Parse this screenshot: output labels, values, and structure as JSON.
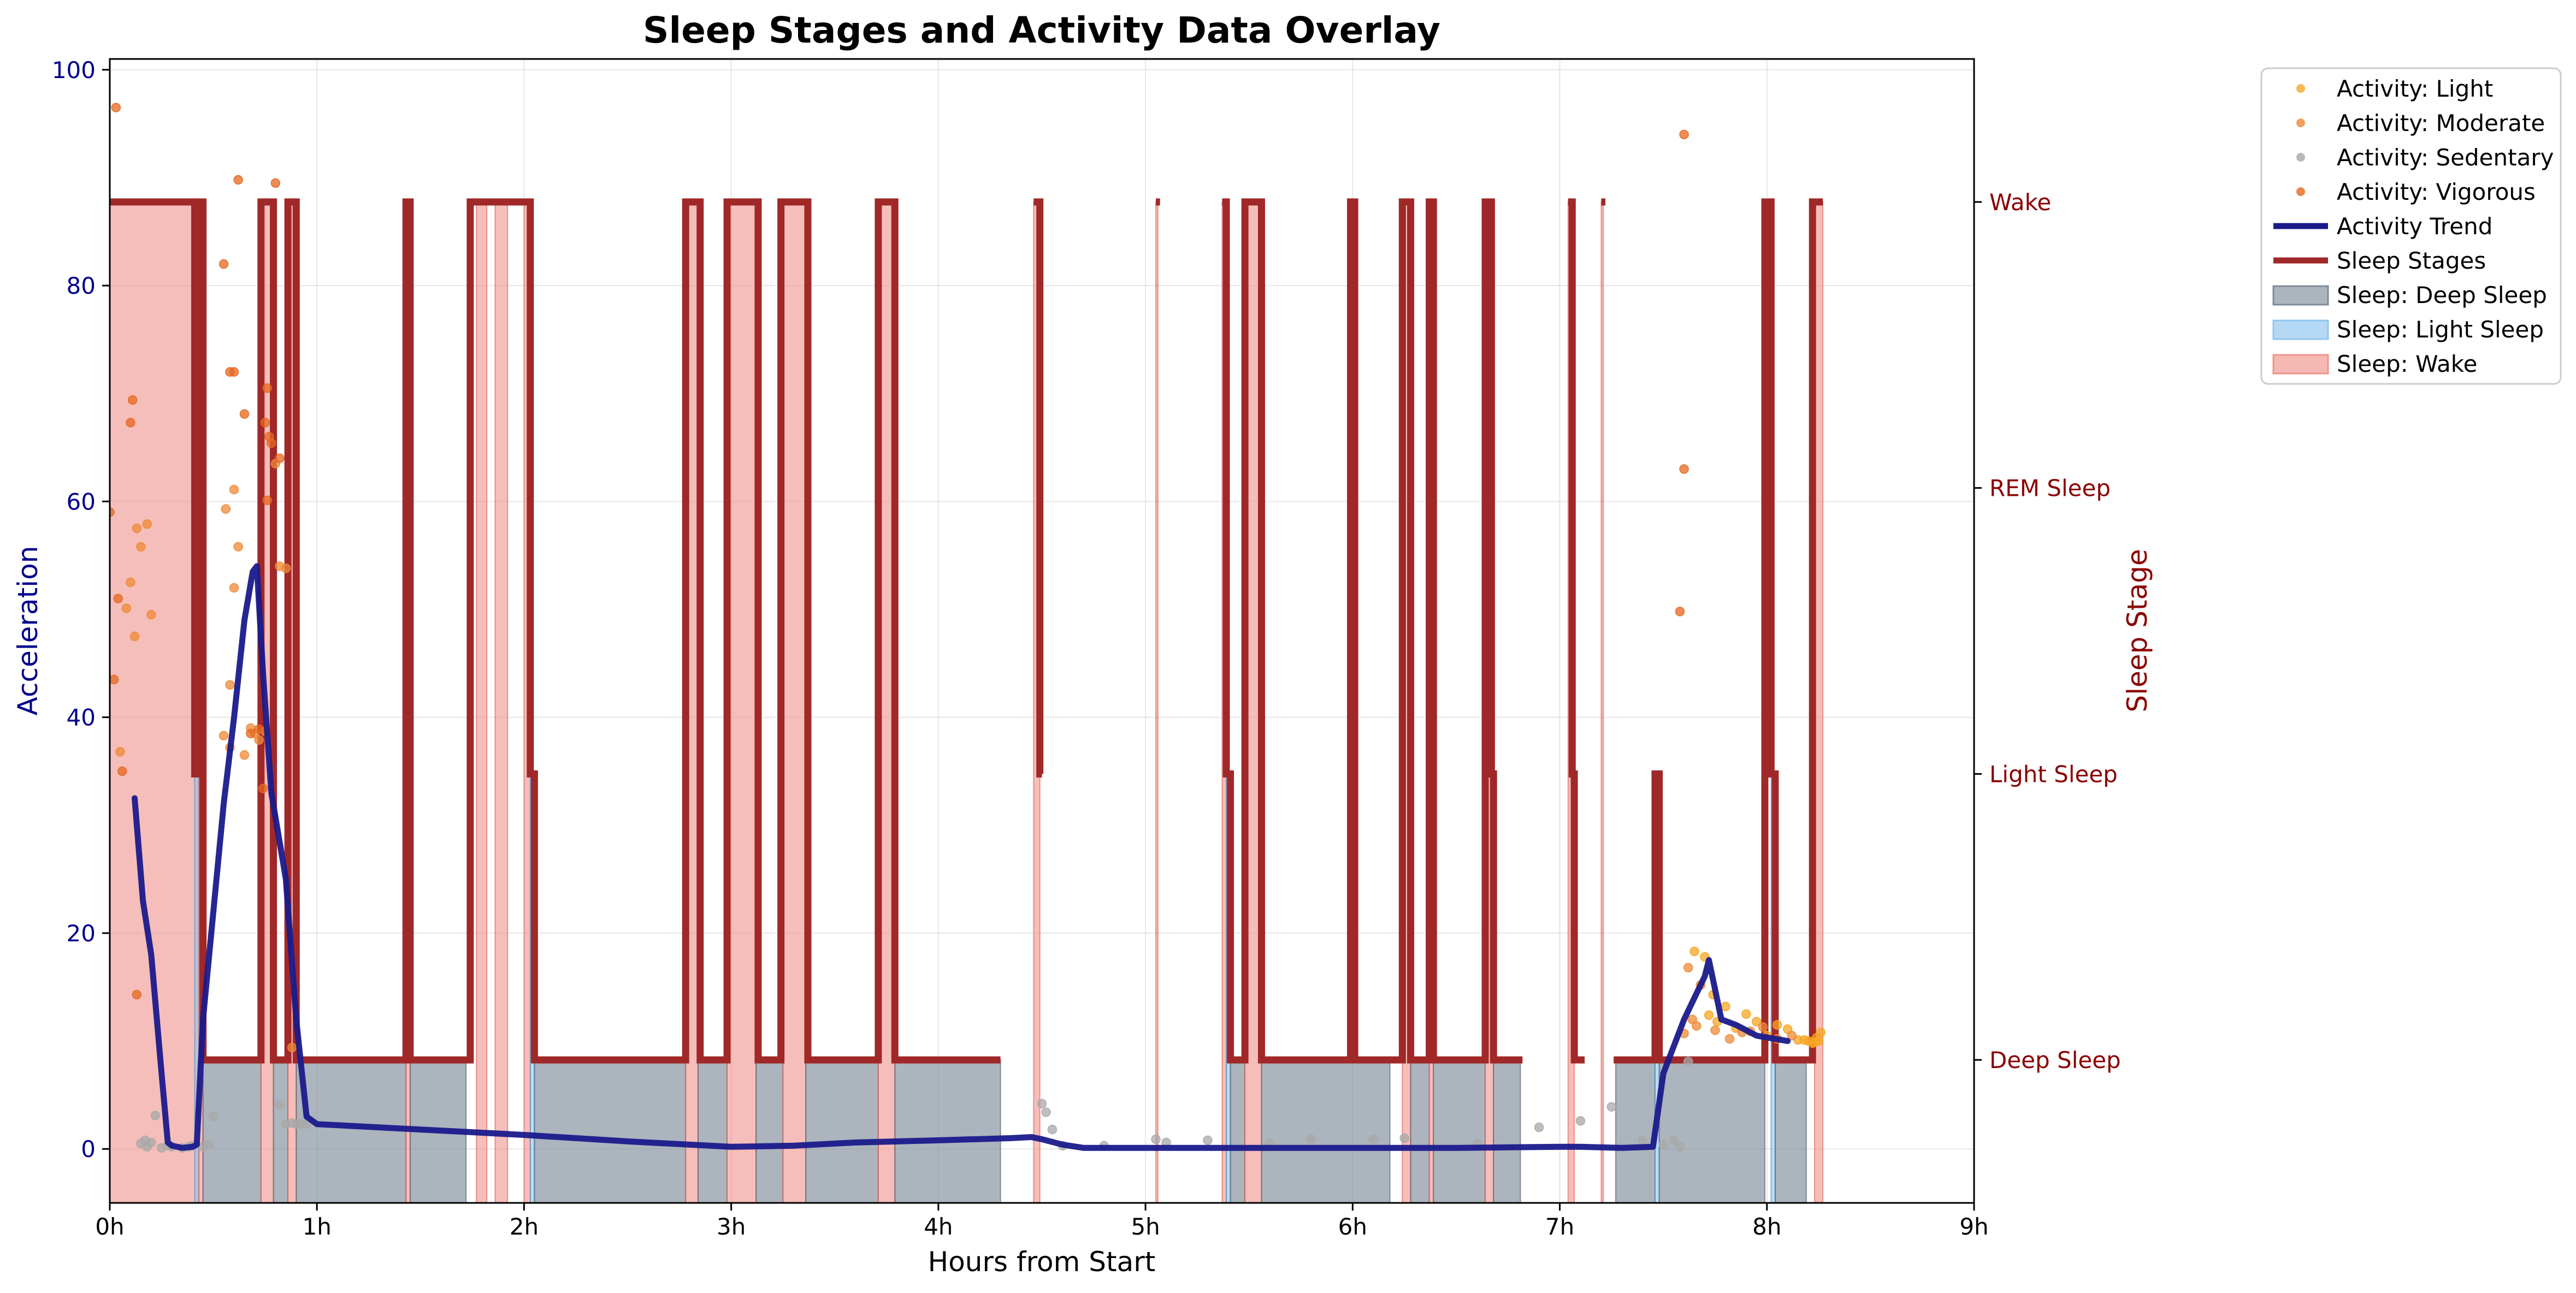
{
  "chart_data": {
    "type": "line",
    "title": "Sleep Stages and Activity Data Overlay",
    "xlabel": "Hours from Start",
    "ylabel_left": "Acceleration",
    "ylabel_right": "Sleep Stage",
    "xlim": [
      0,
      9
    ],
    "ylim_left": [
      -5,
      101
    ],
    "ylim_right": [
      0.5,
      4.5
    ],
    "x_ticks": [
      0,
      1,
      2,
      3,
      4,
      5,
      6,
      7,
      8,
      9
    ],
    "x_tick_labels": [
      "0h",
      "1h",
      "2h",
      "3h",
      "4h",
      "5h",
      "6h",
      "7h",
      "8h",
      "9h"
    ],
    "y_ticks_left": [
      0,
      20,
      40,
      60,
      80,
      100
    ],
    "y_tick_labels_left": [
      "0",
      "20",
      "40",
      "60",
      "80",
      "100"
    ],
    "stage_ticks": [
      1,
      2,
      3,
      4
    ],
    "stage_tick_labels": [
      "Deep Sleep",
      "Light Sleep",
      "REM Sleep",
      "Wake"
    ],
    "grid": true,
    "legend_position": "outside-top-right",
    "colors": {
      "light": "#f5a623",
      "moderate": "#ee8a35",
      "sedentary": "#a8a8a8",
      "vigorous": "#e5671f",
      "trend": "#1a1a8c",
      "stages": "#a02828",
      "deep_fill": "#7f8c9a",
      "light_fill": "#8ec5ee",
      "wake_fill": "#f0938c",
      "left_axis": "#00008b",
      "right_axis": "#8b0000"
    },
    "legend": [
      {
        "label": "Activity: Light",
        "kind": "dot",
        "color": "#f5a623"
      },
      {
        "label": "Activity: Moderate",
        "kind": "dot",
        "color": "#ee8a35"
      },
      {
        "label": "Activity: Sedentary",
        "kind": "dot",
        "color": "#a8a8a8"
      },
      {
        "label": "Activity: Vigorous",
        "kind": "dot",
        "color": "#e5671f"
      },
      {
        "label": "Activity Trend",
        "kind": "line",
        "color": "#1a1a8c"
      },
      {
        "label": "Sleep Stages",
        "kind": "line",
        "color": "#a02828"
      },
      {
        "label": "Sleep: Deep Sleep",
        "kind": "patch",
        "color": "#7f8c9a"
      },
      {
        "label": "Sleep: Light Sleep",
        "kind": "patch",
        "color": "#8ec5ee"
      },
      {
        "label": "Sleep: Wake",
        "kind": "patch",
        "color": "#f0938c"
      }
    ],
    "sleep_stage_segments": [
      [
        0.0,
        0.41,
        4
      ],
      [
        0.41,
        0.43,
        2
      ],
      [
        0.43,
        0.45,
        4
      ],
      [
        0.45,
        0.73,
        1
      ],
      [
        0.73,
        0.79,
        4
      ],
      [
        0.79,
        0.86,
        1
      ],
      [
        0.86,
        0.9,
        4
      ],
      [
        0.9,
        1.43,
        1
      ],
      [
        1.43,
        1.45,
        4
      ],
      [
        1.45,
        1.74,
        1
      ],
      [
        1.74,
        1.76,
        4
      ],
      [
        1.76,
        1.85,
        4
      ],
      [
        1.85,
        1.93,
        4
      ],
      [
        1.93,
        2.0,
        4
      ],
      [
        2.0,
        2.03,
        4
      ],
      [
        2.03,
        2.05,
        2
      ],
      [
        2.05,
        2.78,
        1
      ],
      [
        2.78,
        2.85,
        4
      ],
      [
        2.85,
        2.98,
        1
      ],
      [
        2.98,
        3.13,
        4
      ],
      [
        3.13,
        3.24,
        1
      ],
      [
        3.24,
        3.37,
        4
      ],
      [
        3.37,
        3.71,
        1
      ],
      [
        3.71,
        3.79,
        4
      ],
      [
        3.79,
        4.3,
        1
      ],
      [
        4.46,
        4.49,
        4
      ],
      [
        4.49,
        4.5,
        2
      ],
      [
        5.05,
        5.07,
        4
      ],
      [
        5.37,
        5.39,
        4
      ],
      [
        5.39,
        5.41,
        2
      ],
      [
        5.41,
        5.48,
        1
      ],
      [
        5.48,
        5.56,
        4
      ],
      [
        5.56,
        5.99,
        1
      ],
      [
        5.99,
        6.01,
        4
      ],
      [
        6.01,
        6.24,
        1
      ],
      [
        6.24,
        6.28,
        4
      ],
      [
        6.28,
        6.37,
        1
      ],
      [
        6.37,
        6.39,
        4
      ],
      [
        6.39,
        6.64,
        1
      ],
      [
        6.64,
        6.67,
        4
      ],
      [
        6.67,
        6.68,
        2
      ],
      [
        6.68,
        6.82,
        1
      ],
      [
        7.04,
        7.06,
        4
      ],
      [
        7.06,
        7.07,
        2
      ],
      [
        7.07,
        7.12,
        1
      ],
      [
        7.2,
        7.22,
        4
      ],
      [
        7.26,
        7.46,
        1
      ],
      [
        7.46,
        7.48,
        2
      ],
      [
        7.48,
        7.99,
        1
      ],
      [
        7.99,
        8.02,
        4
      ],
      [
        8.02,
        8.04,
        2
      ],
      [
        8.04,
        8.22,
        1
      ],
      [
        8.22,
        8.27,
        4
      ]
    ],
    "sleep_fill_spans": [
      {
        "stage": "Wake",
        "x0": 0.0,
        "x1": 0.43
      },
      {
        "stage": "Light Sleep",
        "x0": 0.41,
        "x1": 0.43
      },
      {
        "stage": "Wake",
        "x0": 0.43,
        "x1": 0.45
      },
      {
        "stage": "Deep Sleep",
        "x0": 0.45,
        "x1": 0.73
      },
      {
        "stage": "Wake",
        "x0": 0.73,
        "x1": 0.79
      },
      {
        "stage": "Deep Sleep",
        "x0": 0.79,
        "x1": 0.86
      },
      {
        "stage": "Wake",
        "x0": 0.86,
        "x1": 0.9
      },
      {
        "stage": "Deep Sleep",
        "x0": 0.9,
        "x1": 1.43
      },
      {
        "stage": "Wake",
        "x0": 1.43,
        "x1": 1.45
      },
      {
        "stage": "Deep Sleep",
        "x0": 1.45,
        "x1": 1.72
      },
      {
        "stage": "Wake",
        "x0": 1.77,
        "x1": 1.82
      },
      {
        "stage": "Wake",
        "x0": 1.86,
        "x1": 1.92
      },
      {
        "stage": "Wake",
        "x0": 2.0,
        "x1": 2.03
      },
      {
        "stage": "Light Sleep",
        "x0": 2.03,
        "x1": 2.05
      },
      {
        "stage": "Deep Sleep",
        "x0": 2.05,
        "x1": 2.78
      },
      {
        "stage": "Wake",
        "x0": 2.78,
        "x1": 2.84
      },
      {
        "stage": "Deep Sleep",
        "x0": 2.84,
        "x1": 2.98
      },
      {
        "stage": "Wake",
        "x0": 2.98,
        "x1": 3.12
      },
      {
        "stage": "Deep Sleep",
        "x0": 3.12,
        "x1": 3.25
      },
      {
        "stage": "Wake",
        "x0": 3.25,
        "x1": 3.36
      },
      {
        "stage": "Deep Sleep",
        "x0": 3.36,
        "x1": 3.71
      },
      {
        "stage": "Wake",
        "x0": 3.71,
        "x1": 3.79
      },
      {
        "stage": "Deep Sleep",
        "x0": 3.79,
        "x1": 4.3
      },
      {
        "stage": "Wake",
        "x0": 4.46,
        "x1": 4.49
      },
      {
        "stage": "Wake",
        "x0": 5.05,
        "x1": 5.06
      },
      {
        "stage": "Wake",
        "x0": 5.37,
        "x1": 5.39
      },
      {
        "stage": "Light Sleep",
        "x0": 5.39,
        "x1": 5.41
      },
      {
        "stage": "Deep Sleep",
        "x0": 5.41,
        "x1": 5.48
      },
      {
        "stage": "Wake",
        "x0": 5.48,
        "x1": 5.56
      },
      {
        "stage": "Deep Sleep",
        "x0": 5.56,
        "x1": 6.18
      },
      {
        "stage": "Wake",
        "x0": 6.24,
        "x1": 6.28
      },
      {
        "stage": "Deep Sleep",
        "x0": 6.28,
        "x1": 6.37
      },
      {
        "stage": "Wake",
        "x0": 6.37,
        "x1": 6.39
      },
      {
        "stage": "Deep Sleep",
        "x0": 6.39,
        "x1": 6.64
      },
      {
        "stage": "Wake",
        "x0": 6.64,
        "x1": 6.68
      },
      {
        "stage": "Deep Sleep",
        "x0": 6.68,
        "x1": 6.81
      },
      {
        "stage": "Wake",
        "x0": 7.04,
        "x1": 7.07
      },
      {
        "stage": "Wake",
        "x0": 7.2,
        "x1": 7.21
      },
      {
        "stage": "Deep Sleep",
        "x0": 7.27,
        "x1": 7.46
      },
      {
        "stage": "Light Sleep",
        "x0": 7.46,
        "x1": 7.48
      },
      {
        "stage": "Deep Sleep",
        "x0": 7.48,
        "x1": 7.99
      },
      {
        "stage": "Light Sleep",
        "x0": 8.02,
        "x1": 8.04
      },
      {
        "stage": "Deep Sleep",
        "x0": 8.04,
        "x1": 8.19
      },
      {
        "stage": "Wake",
        "x0": 8.23,
        "x1": 8.27
      }
    ],
    "activity_trend": {
      "x": [
        0.12,
        0.16,
        0.2,
        0.25,
        0.28,
        0.3,
        0.35,
        0.4,
        0.42,
        0.45,
        0.5,
        0.55,
        0.6,
        0.65,
        0.69,
        0.71,
        0.74,
        0.78,
        0.85,
        0.9,
        0.95,
        1.0,
        1.5,
        2.0,
        2.5,
        3.0,
        3.3,
        3.6,
        4.0,
        4.35,
        4.45,
        4.5,
        4.6,
        4.7,
        5.0,
        5.5,
        6.0,
        6.5,
        7.0,
        7.1,
        7.3,
        7.45,
        7.5,
        7.6,
        7.7,
        7.72,
        7.78,
        7.85,
        7.95,
        8.1
      ],
      "y": [
        32.5,
        23,
        18,
        7,
        0.6,
        0.3,
        0.1,
        0.2,
        0.4,
        12,
        22,
        32,
        40,
        49,
        53.5,
        54,
        44,
        33,
        25,
        12,
        3,
        2.3,
        1.8,
        1.3,
        0.7,
        0.2,
        0.3,
        0.6,
        0.8,
        1.0,
        1.1,
        0.9,
        0.4,
        0.1,
        0.1,
        0.1,
        0.1,
        0.1,
        0.2,
        0.2,
        0.1,
        0.2,
        7,
        12,
        16,
        17.5,
        12,
        11.5,
        10.5,
        10
      ]
    },
    "scatter": {
      "light": [
        [
          7.65,
          18.3
        ],
        [
          7.7,
          17.8
        ],
        [
          7.72,
          12.4
        ],
        [
          7.74,
          14.3
        ],
        [
          7.76,
          11.8
        ],
        [
          7.8,
          13.2
        ],
        [
          7.85,
          11.2
        ],
        [
          7.9,
          12.5
        ],
        [
          7.95,
          11.8
        ],
        [
          8.0,
          10.5
        ],
        [
          8.05,
          11.5
        ],
        [
          8.1,
          11.1
        ],
        [
          8.15,
          10.1
        ],
        [
          8.2,
          10.0
        ],
        [
          8.22,
          9.8
        ],
        [
          8.24,
          10.3
        ],
        [
          8.25,
          10.0
        ],
        [
          8.26,
          10.8
        ],
        [
          8.23,
          9.9
        ],
        [
          8.18,
          10.1
        ]
      ],
      "moderate": [
        [
          0.1,
          52.5
        ],
        [
          0.12,
          47.5
        ],
        [
          0.15,
          55.8
        ],
        [
          0.08,
          50.1
        ],
        [
          0.05,
          36.8
        ],
        [
          0.13,
          57.5
        ],
        [
          0.18,
          57.9
        ],
        [
          0.2,
          49.5
        ],
        [
          0.55,
          38.3
        ],
        [
          0.58,
          37.2
        ],
        [
          0.6,
          52.0
        ],
        [
          0.62,
          55.8
        ],
        [
          0.65,
          36.5
        ],
        [
          0.68,
          39.0
        ],
        [
          0.7,
          38.5
        ],
        [
          0.72,
          37.9
        ],
        [
          0.75,
          38.7
        ],
        [
          0.8,
          63.5
        ],
        [
          0.85,
          53.8
        ],
        [
          0.88,
          9.4
        ],
        [
          0.6,
          61.1
        ],
        [
          0.56,
          59.3
        ],
        [
          0.58,
          43.0
        ],
        [
          0.82,
          54.0
        ],
        [
          7.6,
          10.7
        ],
        [
          7.62,
          16.8
        ],
        [
          7.64,
          12.0
        ],
        [
          7.66,
          11.4
        ],
        [
          7.68,
          15.2
        ],
        [
          7.75,
          11.0
        ],
        [
          7.82,
          10.2
        ],
        [
          7.88,
          10.8
        ],
        [
          7.92,
          10.9
        ],
        [
          7.98,
          11.3
        ],
        [
          8.05,
          10.2
        ],
        [
          8.12,
          10.5
        ]
      ],
      "sedentary": [
        [
          0.15,
          0.5
        ],
        [
          0.17,
          0.8
        ],
        [
          0.18,
          0.2
        ],
        [
          0.2,
          0.6
        ],
        [
          0.22,
          3.1
        ],
        [
          0.25,
          0.1
        ],
        [
          0.28,
          0.3
        ],
        [
          0.3,
          0.2
        ],
        [
          0.35,
          0.1
        ],
        [
          0.38,
          0.2
        ],
        [
          0.4,
          0.3
        ],
        [
          0.45,
          0.2
        ],
        [
          0.48,
          0.4
        ],
        [
          0.5,
          3.0
        ],
        [
          0.82,
          4.1
        ],
        [
          0.85,
          2.3
        ],
        [
          0.88,
          2.4
        ],
        [
          0.9,
          2.3
        ],
        [
          0.92,
          2.3
        ],
        [
          0.95,
          2.3
        ],
        [
          4.5,
          4.2
        ],
        [
          4.52,
          3.4
        ],
        [
          4.55,
          1.8
        ],
        [
          4.6,
          0.3
        ],
        [
          4.8,
          0.3
        ],
        [
          5.05,
          0.9
        ],
        [
          5.1,
          0.6
        ],
        [
          5.3,
          0.8
        ],
        [
          5.6,
          0.5
        ],
        [
          5.8,
          0.9
        ],
        [
          6.1,
          0.9
        ],
        [
          6.25,
          1.0
        ],
        [
          6.6,
          0.5
        ],
        [
          6.9,
          2.0
        ],
        [
          7.1,
          2.6
        ],
        [
          7.25,
          3.9
        ],
        [
          7.4,
          0.8
        ],
        [
          7.5,
          0.4
        ],
        [
          7.55,
          0.8
        ],
        [
          7.58,
          0.2
        ],
        [
          7.62,
          8.1
        ]
      ],
      "vigorous": [
        [
          0.03,
          96.5
        ],
        [
          0.0,
          59.0
        ],
        [
          0.02,
          43.5
        ],
        [
          0.04,
          51.0
        ],
        [
          0.06,
          35.0
        ],
        [
          0.1,
          67.3
        ],
        [
          0.11,
          69.4
        ],
        [
          0.13,
          14.3
        ],
        [
          0.55,
          82.0
        ],
        [
          0.58,
          72.0
        ],
        [
          0.6,
          72.0
        ],
        [
          0.62,
          89.8
        ],
        [
          0.65,
          68.1
        ],
        [
          0.68,
          38.5
        ],
        [
          0.72,
          38.9
        ],
        [
          0.74,
          33.4
        ],
        [
          0.76,
          70.5
        ],
        [
          0.77,
          66.0
        ],
        [
          0.78,
          65.4
        ],
        [
          0.8,
          89.5
        ],
        [
          0.82,
          64.0
        ],
        [
          0.75,
          67.3
        ],
        [
          0.76,
          60.1
        ],
        [
          7.6,
          94.0
        ],
        [
          7.6,
          63.0
        ],
        [
          7.58,
          49.8
        ]
      ]
    }
  }
}
